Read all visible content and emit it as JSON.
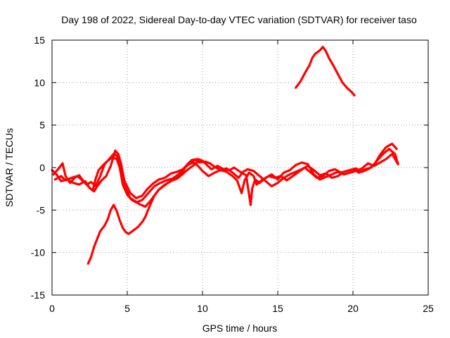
{
  "chart_data": {
    "type": "line",
    "title": "Day 198 of 2022, Sidereal Day-to-day VTEC variation (SDTVAR) for receiver taso",
    "xlabel": "GPS time / hours",
    "ylabel": "SDTVAR / TECUs",
    "xlim": [
      0,
      25
    ],
    "ylim": [
      -15,
      15
    ],
    "xticks": [
      0,
      5,
      10,
      15,
      20,
      25
    ],
    "yticks": [
      -15,
      -10,
      -5,
      0,
      5,
      10,
      15
    ],
    "grid": true,
    "color": "#ff0000",
    "series": [
      {
        "name": "trace-1",
        "points": [
          [
            0.1,
            -0.8
          ],
          [
            0.4,
            -0.2
          ],
          [
            0.7,
            0.5
          ],
          [
            0.9,
            -1.0
          ],
          [
            1.2,
            -1.8
          ],
          [
            1.5,
            -1.2
          ],
          [
            1.8,
            -0.9
          ],
          [
            2.1,
            -1.6
          ],
          [
            2.4,
            -2.2
          ],
          [
            2.7,
            -2.7
          ],
          [
            2.9,
            -1.3
          ],
          [
            3.1,
            -0.3
          ],
          [
            3.4,
            0.3
          ],
          [
            3.7,
            0.8
          ],
          [
            4.0,
            1.2
          ],
          [
            4.3,
            1.0
          ],
          [
            4.5,
            0.0
          ],
          [
            4.7,
            -2.0
          ],
          [
            5.0,
            -3.2
          ],
          [
            5.3,
            -3.8
          ],
          [
            5.6,
            -4.1
          ],
          [
            6.0,
            -3.8
          ],
          [
            6.4,
            -3.0
          ],
          [
            6.8,
            -2.2
          ],
          [
            7.2,
            -1.8
          ],
          [
            7.6,
            -1.5
          ],
          [
            8.0,
            -1.3
          ],
          [
            8.4,
            -0.8
          ],
          [
            8.8,
            0.0
          ],
          [
            9.2,
            0.7
          ],
          [
            9.5,
            0.9
          ],
          [
            9.8,
            0.6
          ],
          [
            10.2,
            0.7
          ],
          [
            10.5,
            0.5
          ],
          [
            10.8,
            0.1
          ],
          [
            11.2,
            -0.3
          ],
          [
            11.6,
            -0.1
          ],
          [
            12.0,
            -0.6
          ],
          [
            12.4,
            -1.2
          ],
          [
            12.7,
            -0.5
          ],
          [
            13.0,
            -0.2
          ],
          [
            13.4,
            -0.4
          ],
          [
            13.8,
            -1.0
          ],
          [
            14.2,
            -1.6
          ],
          [
            14.6,
            -2.2
          ],
          [
            15.0,
            -1.8
          ],
          [
            15.4,
            -1.2
          ],
          [
            15.8,
            -0.8
          ],
          [
            16.2,
            -0.5
          ],
          [
            16.6,
            -0.2
          ],
          [
            17.0,
            0.2
          ],
          [
            17.4,
            -0.3
          ],
          [
            17.8,
            -0.9
          ],
          [
            18.2,
            -0.7
          ],
          [
            18.6,
            -1.2
          ],
          [
            19.0,
            -1.0
          ],
          [
            19.4,
            -0.5
          ],
          [
            19.8,
            -0.3
          ],
          [
            20.2,
            -0.1
          ],
          [
            20.6,
            -0.5
          ],
          [
            21.0,
            -0.2
          ],
          [
            21.4,
            0.3
          ],
          [
            21.8,
            1.5
          ],
          [
            22.2,
            2.4
          ],
          [
            22.6,
            2.8
          ],
          [
            22.9,
            2.2
          ]
        ]
      },
      {
        "name": "trace-2",
        "points": [
          [
            0.2,
            -1.4
          ],
          [
            0.6,
            -1.0
          ],
          [
            0.9,
            -1.5
          ],
          [
            1.3,
            -1.2
          ],
          [
            1.7,
            -1.0
          ],
          [
            2.0,
            -1.5
          ],
          [
            2.3,
            -2.0
          ],
          [
            2.6,
            -1.7
          ],
          [
            2.9,
            -2.2
          ],
          [
            3.2,
            -1.0
          ],
          [
            3.5,
            0.4
          ],
          [
            3.8,
            1.0
          ],
          [
            4.1,
            1.6
          ],
          [
            4.3,
            1.4
          ],
          [
            4.5,
            0.5
          ],
          [
            4.8,
            -1.5
          ],
          [
            5.2,
            -3.0
          ],
          [
            5.6,
            -3.6
          ],
          [
            6.0,
            -3.3
          ],
          [
            6.3,
            -2.6
          ],
          [
            6.7,
            -1.9
          ],
          [
            7.1,
            -1.4
          ],
          [
            7.5,
            -1.2
          ],
          [
            7.9,
            -0.7
          ],
          [
            8.3,
            -0.5
          ],
          [
            8.7,
            -0.2
          ],
          [
            9.1,
            0.4
          ],
          [
            9.4,
            0.6
          ],
          [
            9.7,
            0.2
          ],
          [
            10.0,
            -0.4
          ],
          [
            10.4,
            -1.0
          ],
          [
            10.8,
            -0.6
          ],
          [
            11.2,
            -0.3
          ],
          [
            11.6,
            -0.5
          ],
          [
            12.0,
            -1.0
          ],
          [
            12.3,
            -1.5
          ],
          [
            12.6,
            -3.0
          ],
          [
            12.8,
            -1.5
          ],
          [
            13.1,
            -0.6
          ],
          [
            13.4,
            -1.0
          ],
          [
            13.6,
            -2.0
          ],
          [
            14.0,
            -1.4
          ],
          [
            14.4,
            -1.0
          ],
          [
            14.8,
            -1.2
          ],
          [
            15.2,
            -1.0
          ],
          [
            15.6,
            -1.5
          ],
          [
            16.0,
            -1.0
          ],
          [
            16.4,
            -0.5
          ],
          [
            16.8,
            0.0
          ],
          [
            17.2,
            -0.6
          ],
          [
            17.6,
            -1.2
          ],
          [
            18.0,
            -1.0
          ],
          [
            18.4,
            -0.4
          ],
          [
            18.8,
            -0.2
          ],
          [
            19.2,
            -0.6
          ],
          [
            19.6,
            -0.4
          ],
          [
            20.0,
            -0.2
          ],
          [
            20.4,
            -0.6
          ],
          [
            20.8,
            -0.2
          ],
          [
            21.2,
            0.0
          ],
          [
            21.6,
            0.8
          ],
          [
            22.0,
            1.6
          ],
          [
            22.4,
            2.2
          ],
          [
            22.8,
            1.6
          ],
          [
            23.0,
            0.4
          ]
        ]
      },
      {
        "name": "trace-3",
        "points": [
          [
            0.0,
            -0.3
          ],
          [
            0.3,
            -0.8
          ],
          [
            0.6,
            -1.6
          ],
          [
            1.0,
            -1.4
          ],
          [
            1.4,
            -1.8
          ],
          [
            1.8,
            -2.0
          ],
          [
            2.2,
            -1.6
          ],
          [
            2.5,
            -2.4
          ],
          [
            2.8,
            -2.8
          ],
          [
            3.0,
            -2.2
          ],
          [
            3.3,
            -1.5
          ],
          [
            3.6,
            -1.0
          ],
          [
            3.9,
            0.2
          ],
          [
            4.2,
            2.0
          ],
          [
            4.4,
            1.6
          ],
          [
            4.6,
            0.4
          ],
          [
            4.9,
            -2.5
          ],
          [
            5.2,
            -3.6
          ],
          [
            5.5,
            -3.9
          ],
          [
            5.8,
            -4.3
          ],
          [
            6.2,
            -4.6
          ],
          [
            6.5,
            -4.0
          ],
          [
            6.8,
            -3.3
          ],
          [
            7.1,
            -2.6
          ],
          [
            7.5,
            -2.0
          ],
          [
            7.9,
            -1.6
          ],
          [
            8.3,
            -1.2
          ],
          [
            8.7,
            -0.4
          ],
          [
            9.0,
            0.4
          ],
          [
            9.3,
            0.9
          ],
          [
            9.7,
            1.0
          ],
          [
            10.0,
            0.8
          ],
          [
            10.3,
            0.3
          ],
          [
            10.6,
            -0.2
          ],
          [
            11.0,
            0.2
          ],
          [
            11.4,
            -0.2
          ],
          [
            11.8,
            -0.3
          ],
          [
            12.1,
            0.0
          ],
          [
            12.5,
            -0.5
          ],
          [
            12.9,
            -0.9
          ],
          [
            13.2,
            -4.4
          ],
          [
            13.3,
            -2.5
          ],
          [
            13.5,
            -1.4
          ],
          [
            13.8,
            -1.8
          ],
          [
            14.2,
            -1.2
          ],
          [
            14.6,
            -0.8
          ],
          [
            15.0,
            -1.4
          ],
          [
            15.4,
            -0.6
          ],
          [
            15.8,
            -0.3
          ],
          [
            16.2,
            0.3
          ],
          [
            16.6,
            0.6
          ],
          [
            17.0,
            0.4
          ],
          [
            17.4,
            -0.8
          ],
          [
            17.8,
            -1.4
          ],
          [
            18.2,
            -1.1
          ],
          [
            18.6,
            -0.8
          ],
          [
            19.0,
            -0.5
          ],
          [
            19.4,
            -0.8
          ],
          [
            19.8,
            -0.6
          ],
          [
            20.2,
            -0.4
          ],
          [
            20.6,
            -0.1
          ],
          [
            21.0,
            0.5
          ],
          [
            21.4,
            0.2
          ],
          [
            21.8,
            0.6
          ],
          [
            22.2,
            1.0
          ],
          [
            22.6,
            1.6
          ],
          [
            23.0,
            0.4
          ]
        ]
      },
      {
        "name": "trace-4",
        "points": [
          [
            2.4,
            -11.3
          ],
          [
            2.6,
            -10.5
          ],
          [
            2.8,
            -9.3
          ],
          [
            3.0,
            -8.4
          ],
          [
            3.2,
            -7.5
          ],
          [
            3.5,
            -6.8
          ],
          [
            3.7,
            -6.1
          ],
          [
            3.9,
            -5.0
          ],
          [
            4.1,
            -4.4
          ],
          [
            4.3,
            -5.1
          ],
          [
            4.5,
            -6.2
          ],
          [
            4.7,
            -7.1
          ],
          [
            4.9,
            -7.6
          ],
          [
            5.1,
            -7.8
          ],
          [
            5.4,
            -7.4
          ],
          [
            5.7,
            -7.0
          ],
          [
            6.0,
            -6.4
          ],
          [
            6.2,
            -5.8
          ],
          [
            6.4,
            -4.9
          ],
          [
            6.6,
            -4.1
          ],
          [
            6.8,
            -3.3
          ],
          [
            7.1,
            -2.6
          ],
          [
            7.4,
            -2.2
          ],
          [
            7.7,
            -1.8
          ],
          [
            8.0,
            -1.5
          ],
          [
            8.3,
            -1.3
          ],
          [
            8.6,
            -0.9
          ],
          [
            8.9,
            -0.4
          ],
          [
            9.2,
            0.0
          ],
          [
            9.5,
            0.4
          ],
          [
            9.8,
            0.8
          ]
        ]
      },
      {
        "name": "trace-5",
        "points": [
          [
            16.2,
            9.4
          ],
          [
            16.5,
            10.1
          ],
          [
            16.8,
            11.1
          ],
          [
            17.1,
            12.0
          ],
          [
            17.3,
            12.9
          ],
          [
            17.5,
            13.4
          ],
          [
            17.8,
            13.8
          ],
          [
            18.0,
            14.2
          ],
          [
            18.2,
            13.7
          ],
          [
            18.4,
            12.9
          ],
          [
            18.7,
            12.0
          ],
          [
            19.0,
            11.0
          ],
          [
            19.3,
            10.0
          ],
          [
            19.6,
            9.4
          ],
          [
            19.9,
            8.9
          ],
          [
            20.1,
            8.5
          ]
        ]
      }
    ]
  }
}
